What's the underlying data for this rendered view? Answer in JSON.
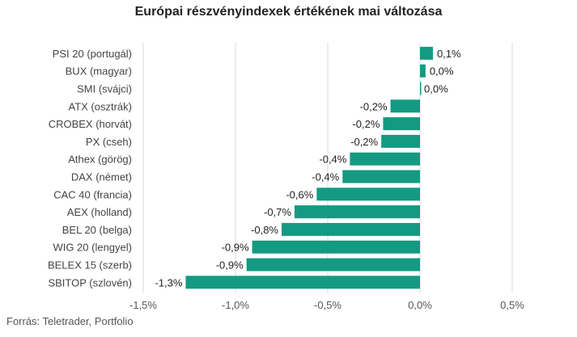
{
  "chart_data": {
    "type": "bar",
    "orientation": "horizontal",
    "title": "Európai részvényindexek értékének mai változása",
    "categories": [
      "PSI 20 (portugál)",
      "BUX (magyar)",
      "SMI (svájci)",
      "ATX (osztrák)",
      "CROBEX (horvát)",
      "PX (cseh)",
      "Athex (görög)",
      "DAX (német)",
      "CAC 40 (francia)",
      "AEX (holland)",
      "BEL 20 (belga)",
      "WIG 20 (lengyel)",
      "BELEX 15 (szerb)",
      "SBITOP (szlovén)"
    ],
    "values": [
      0.07,
      0.03,
      0.0,
      -0.16,
      -0.2,
      -0.21,
      -0.38,
      -0.42,
      -0.56,
      -0.68,
      -0.75,
      -0.91,
      -0.94,
      -1.27
    ],
    "value_labels": [
      "0,1%",
      "0,0%",
      "0,0%",
      "-0,2%",
      "-0,2%",
      "-0,2%",
      "-0,4%",
      "-0,4%",
      "-0,6%",
      "-0,7%",
      "-0,8%",
      "-0,9%",
      "-0,9%",
      "-1,3%"
    ],
    "xlim": [
      -1.5,
      0.5
    ],
    "xticks": [
      -1.5,
      -1.0,
      -0.5,
      0.0,
      0.5
    ],
    "xtick_labels": [
      "-1,5%",
      "-1,0%",
      "-0,5%",
      "0,0%",
      "0,5%"
    ],
    "grid": true,
    "bar_color": "#149a82",
    "grid_color": "#d9d9d9"
  },
  "source": "Forrás: Teletrader, Portfolio"
}
